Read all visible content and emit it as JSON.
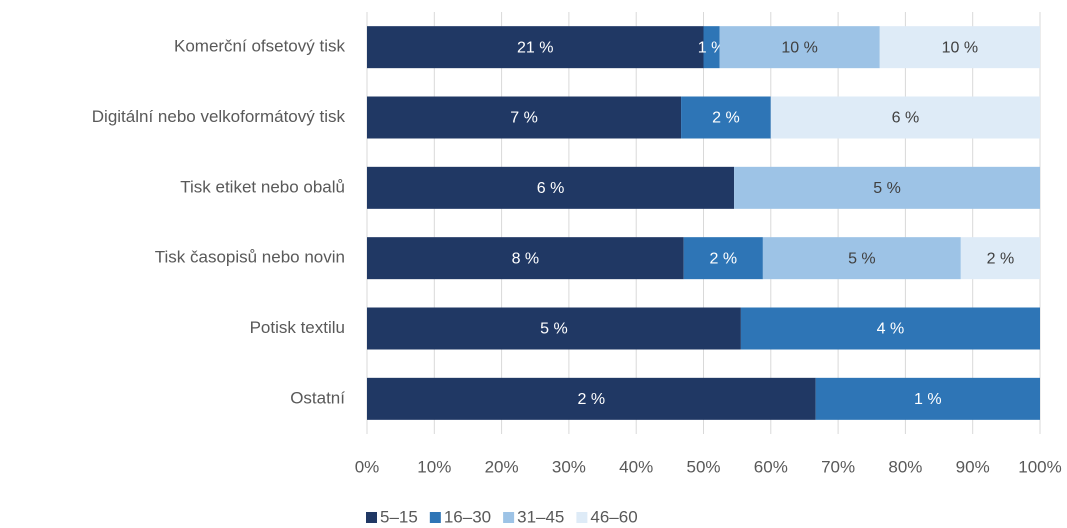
{
  "chart_data": {
    "type": "bar",
    "orientation": "horizontal",
    "stacked_percent": true,
    "categories": [
      "Komerční ofsetový tisk",
      "Digitální nebo velkoformátový tisk",
      "Tisk etiket nebo obalů",
      "Tisk časopisů nebo novin",
      "Potisk textilu",
      "Ostatní"
    ],
    "series": [
      {
        "name": "5–15",
        "color": "#203864",
        "values": [
          21,
          7,
          6,
          8,
          5,
          2
        ],
        "value_labels": [
          "21 %",
          "7 %",
          "6 %",
          "8 %",
          "5 %",
          "2 %"
        ]
      },
      {
        "name": "16–30",
        "color": "#2e75b6",
        "values": [
          1,
          2,
          null,
          2,
          4,
          1
        ],
        "value_labels": [
          "1 %",
          "2 %",
          null,
          "2 %",
          "4 %",
          "1 %"
        ]
      },
      {
        "name": "31–45",
        "color": "#9dc3e6",
        "values": [
          10,
          null,
          5,
          5,
          null,
          null
        ],
        "value_labels": [
          "10 %",
          null,
          "5 %",
          "5 %",
          null,
          null
        ]
      },
      {
        "name": "46–60",
        "color": "#deebf7",
        "values": [
          10,
          6,
          null,
          2,
          null,
          null
        ],
        "value_labels": [
          "10 %",
          "6 %",
          null,
          "2 %",
          null,
          null
        ]
      }
    ],
    "xlim": [
      0,
      100
    ],
    "xticks": [
      {
        "value": 0,
        "label": "0%"
      },
      {
        "value": 10,
        "label": "10%"
      },
      {
        "value": 20,
        "label": "20%"
      },
      {
        "value": 30,
        "label": "30%"
      },
      {
        "value": 40,
        "label": "40%"
      },
      {
        "value": 50,
        "label": "50%"
      },
      {
        "value": 60,
        "label": "60%"
      },
      {
        "value": 70,
        "label": "70%"
      },
      {
        "value": 80,
        "label": "80%"
      },
      {
        "value": 90,
        "label": "90%"
      },
      {
        "value": 100,
        "label": "100%"
      }
    ],
    "grid": true,
    "legend": "bottom"
  }
}
